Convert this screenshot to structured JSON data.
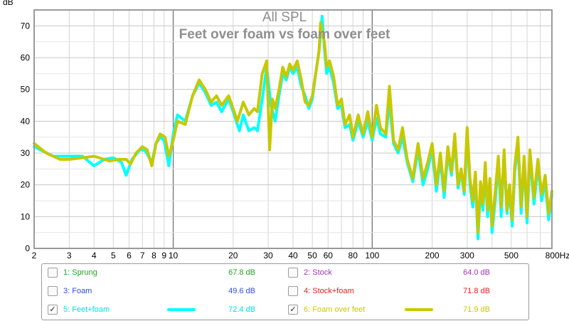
{
  "chart_data": {
    "type": "line",
    "title": "All SPL",
    "subtitle": "Feet over foam vs foam over feet",
    "ylabel": "dB",
    "xunit": "Hz",
    "xscale": "log",
    "xlim": [
      2,
      800
    ],
    "ylim": [
      0,
      75
    ],
    "xticks": [
      {
        "v": 2,
        "label": "2"
      },
      {
        "v": 3,
        "label": "3"
      },
      {
        "v": 4,
        "label": "4"
      },
      {
        "v": 5,
        "label": "5"
      },
      {
        "v": 6,
        "label": "6"
      },
      {
        "v": 7,
        "label": "7"
      },
      {
        "v": 8,
        "label": "8"
      },
      {
        "v": 9,
        "label": "9"
      },
      {
        "v": 10,
        "label": "10"
      },
      {
        "v": 20,
        "label": "20"
      },
      {
        "v": 30,
        "label": "30"
      },
      {
        "v": 40,
        "label": "40"
      },
      {
        "v": 50,
        "label": "50"
      },
      {
        "v": 60,
        "label": "60"
      },
      {
        "v": 80,
        "label": "80"
      },
      {
        "v": 100,
        "label": "100"
      },
      {
        "v": 200,
        "label": "200"
      },
      {
        "v": 300,
        "label": "300"
      },
      {
        "v": 500,
        "label": "500"
      },
      {
        "v": 800,
        "label": "800Hz"
      }
    ],
    "yticks": [
      0,
      10,
      20,
      30,
      40,
      50,
      60,
      70
    ],
    "grid": true,
    "series": [
      {
        "name": "5: Feet+foam",
        "color": "#00ffff",
        "points": [
          [
            2,
            32
          ],
          [
            2.5,
            29
          ],
          [
            3,
            29
          ],
          [
            3.5,
            29
          ],
          [
            4,
            26
          ],
          [
            4.5,
            28
          ],
          [
            5,
            28.5
          ],
          [
            5.5,
            27
          ],
          [
            5.8,
            23
          ],
          [
            6.2,
            28
          ],
          [
            6.8,
            31
          ],
          [
            7.2,
            31
          ],
          [
            7.8,
            27
          ],
          [
            8.2,
            33
          ],
          [
            8.6,
            35
          ],
          [
            9,
            34
          ],
          [
            9.5,
            26
          ],
          [
            10,
            36
          ],
          [
            10.5,
            42
          ],
          [
            11.5,
            40
          ],
          [
            12.5,
            48
          ],
          [
            13.5,
            52
          ],
          [
            14.5,
            49
          ],
          [
            15.5,
            45
          ],
          [
            16.5,
            46
          ],
          [
            17.5,
            43
          ],
          [
            19,
            47
          ],
          [
            20,
            43
          ],
          [
            21.5,
            37
          ],
          [
            22.5,
            42
          ],
          [
            24,
            37
          ],
          [
            25.5,
            38
          ],
          [
            26.5,
            37
          ],
          [
            28,
            47
          ],
          [
            29.5,
            57
          ],
          [
            31,
            45
          ],
          [
            32.5,
            40
          ],
          [
            34,
            48
          ],
          [
            35.5,
            55
          ],
          [
            37,
            53
          ],
          [
            38.5,
            57
          ],
          [
            40,
            55
          ],
          [
            42,
            57
          ],
          [
            44,
            51
          ],
          [
            46,
            48
          ],
          [
            48,
            44
          ],
          [
            50,
            47
          ],
          [
            52,
            55
          ],
          [
            54,
            62
          ],
          [
            55,
            67
          ],
          [
            56,
            73
          ],
          [
            57.5,
            63
          ],
          [
            59,
            55
          ],
          [
            61,
            57
          ],
          [
            64,
            52
          ],
          [
            67,
            44
          ],
          [
            70,
            45
          ],
          [
            73,
            38
          ],
          [
            77,
            39
          ],
          [
            80,
            34
          ],
          [
            85,
            40
          ],
          [
            90,
            35
          ],
          [
            95,
            40
          ],
          [
            100,
            34
          ],
          [
            105,
            41
          ],
          [
            110,
            36
          ],
          [
            117,
            35
          ],
          [
            122,
            46
          ],
          [
            128,
            33
          ],
          [
            135,
            30
          ],
          [
            142,
            35
          ],
          [
            150,
            27
          ],
          [
            160,
            21
          ],
          [
            170,
            31
          ],
          [
            180,
            20
          ],
          [
            190,
            25
          ],
          [
            200,
            31
          ],
          [
            210,
            18
          ],
          [
            220,
            28
          ],
          [
            230,
            16
          ],
          [
            240,
            30
          ],
          [
            250,
            23
          ],
          [
            260,
            34
          ],
          [
            270,
            19
          ],
          [
            280,
            24
          ],
          [
            290,
            17
          ],
          [
            300,
            36
          ],
          [
            310,
            20
          ],
          [
            320,
            13
          ],
          [
            330,
            22
          ],
          [
            340,
            3
          ],
          [
            350,
            19
          ],
          [
            360,
            12
          ],
          [
            370,
            25
          ],
          [
            380,
            10
          ],
          [
            390,
            20
          ],
          [
            400,
            5
          ],
          [
            415,
            15
          ],
          [
            430,
            27
          ],
          [
            445,
            10
          ],
          [
            460,
            30
          ],
          [
            475,
            11
          ],
          [
            490,
            18
          ],
          [
            505,
            7
          ],
          [
            520,
            24
          ],
          [
            540,
            33
          ],
          [
            560,
            11
          ],
          [
            580,
            27
          ],
          [
            600,
            8
          ],
          [
            620,
            29
          ],
          [
            650,
            14
          ],
          [
            680,
            26
          ],
          [
            710,
            15
          ],
          [
            740,
            21
          ],
          [
            770,
            9
          ],
          [
            800,
            17
          ]
        ]
      },
      {
        "name": "6: Foam over feet",
        "color": "#c8c800",
        "points": [
          [
            2,
            33
          ],
          [
            2.3,
            30
          ],
          [
            2.7,
            28
          ],
          [
            3,
            28
          ],
          [
            3.5,
            28.5
          ],
          [
            4,
            29
          ],
          [
            4.5,
            28
          ],
          [
            4.8,
            27.5
          ],
          [
            5.3,
            28
          ],
          [
            5.8,
            28
          ],
          [
            6.1,
            26.5
          ],
          [
            6.5,
            30
          ],
          [
            7,
            32
          ],
          [
            7.4,
            31
          ],
          [
            7.8,
            26
          ],
          [
            8.2,
            33
          ],
          [
            8.6,
            36
          ],
          [
            9.1,
            35
          ],
          [
            9.5,
            29
          ],
          [
            10,
            34
          ],
          [
            10.5,
            40
          ],
          [
            11.5,
            39
          ],
          [
            12.5,
            48
          ],
          [
            13.5,
            53
          ],
          [
            14.5,
            50
          ],
          [
            15.5,
            46
          ],
          [
            16.5,
            48
          ],
          [
            17.5,
            45
          ],
          [
            19,
            48
          ],
          [
            20,
            44
          ],
          [
            21,
            40
          ],
          [
            22.5,
            46
          ],
          [
            24,
            42
          ],
          [
            25.5,
            44
          ],
          [
            26.5,
            43
          ],
          [
            28,
            55
          ],
          [
            29.5,
            59
          ],
          [
            30.5,
            31
          ],
          [
            31.5,
            47
          ],
          [
            32.5,
            44
          ],
          [
            34,
            50
          ],
          [
            35.5,
            57
          ],
          [
            37,
            54
          ],
          [
            38.5,
            58
          ],
          [
            40,
            56
          ],
          [
            42,
            59
          ],
          [
            44,
            53
          ],
          [
            46,
            46
          ],
          [
            48,
            45
          ],
          [
            50,
            48
          ],
          [
            52,
            55
          ],
          [
            54,
            62
          ],
          [
            55,
            71
          ],
          [
            56,
            68
          ],
          [
            57.5,
            65
          ],
          [
            59,
            57
          ],
          [
            61,
            59
          ],
          [
            64,
            54
          ],
          [
            67,
            45
          ],
          [
            70,
            47
          ],
          [
            73,
            39
          ],
          [
            77,
            42
          ],
          [
            80,
            35
          ],
          [
            85,
            42
          ],
          [
            90,
            36
          ],
          [
            95,
            43
          ],
          [
            100,
            35
          ],
          [
            105,
            45
          ],
          [
            110,
            38
          ],
          [
            117,
            36
          ],
          [
            122,
            51
          ],
          [
            128,
            34
          ],
          [
            135,
            31
          ],
          [
            142,
            38
          ],
          [
            150,
            28
          ],
          [
            160,
            22
          ],
          [
            170,
            33
          ],
          [
            180,
            22
          ],
          [
            190,
            27
          ],
          [
            200,
            33
          ],
          [
            210,
            20
          ],
          [
            220,
            30
          ],
          [
            230,
            18
          ],
          [
            240,
            32
          ],
          [
            250,
            24
          ],
          [
            260,
            36
          ],
          [
            270,
            20
          ],
          [
            280,
            25
          ],
          [
            290,
            18
          ],
          [
            300,
            38
          ],
          [
            310,
            22
          ],
          [
            320,
            15
          ],
          [
            330,
            24
          ],
          [
            340,
            5
          ],
          [
            350,
            21
          ],
          [
            360,
            14
          ],
          [
            370,
            27
          ],
          [
            380,
            12
          ],
          [
            390,
            22
          ],
          [
            400,
            7
          ],
          [
            415,
            18
          ],
          [
            430,
            29
          ],
          [
            445,
            13
          ],
          [
            460,
            31
          ],
          [
            475,
            12
          ],
          [
            490,
            20
          ],
          [
            505,
            9
          ],
          [
            520,
            26
          ],
          [
            540,
            35
          ],
          [
            560,
            13
          ],
          [
            580,
            29
          ],
          [
            600,
            10
          ],
          [
            620,
            31
          ],
          [
            650,
            16
          ],
          [
            680,
            28
          ],
          [
            710,
            17
          ],
          [
            740,
            23
          ],
          [
            770,
            11
          ],
          [
            800,
            18
          ]
        ]
      }
    ],
    "legend": [
      {
        "label": "1: Sprung",
        "value": "67.8 dB",
        "color": "#1fa51f",
        "checked": false,
        "check": ""
      },
      {
        "label": "2: Stock",
        "value": "64.0 dB",
        "color": "#a82fbf",
        "checked": false,
        "check": ""
      },
      {
        "label": "3: Foam",
        "value": "49.6 dB",
        "color": "#2b4fd8",
        "checked": false,
        "check": ""
      },
      {
        "label": "4: Stock+foam",
        "value": "71.8 dB",
        "color": "#e02020",
        "checked": false,
        "check": ""
      },
      {
        "label": "5: Feet+foam",
        "value": "72.4 dB",
        "color": "#00e0e0",
        "checked": true,
        "check": "✓",
        "swatch": "#00ffff"
      },
      {
        "label": "6: Foam over feet",
        "value": "71.9 dB",
        "color": "#c8c800",
        "checked": true,
        "check": "✓",
        "swatch": "#c8c800"
      }
    ]
  }
}
